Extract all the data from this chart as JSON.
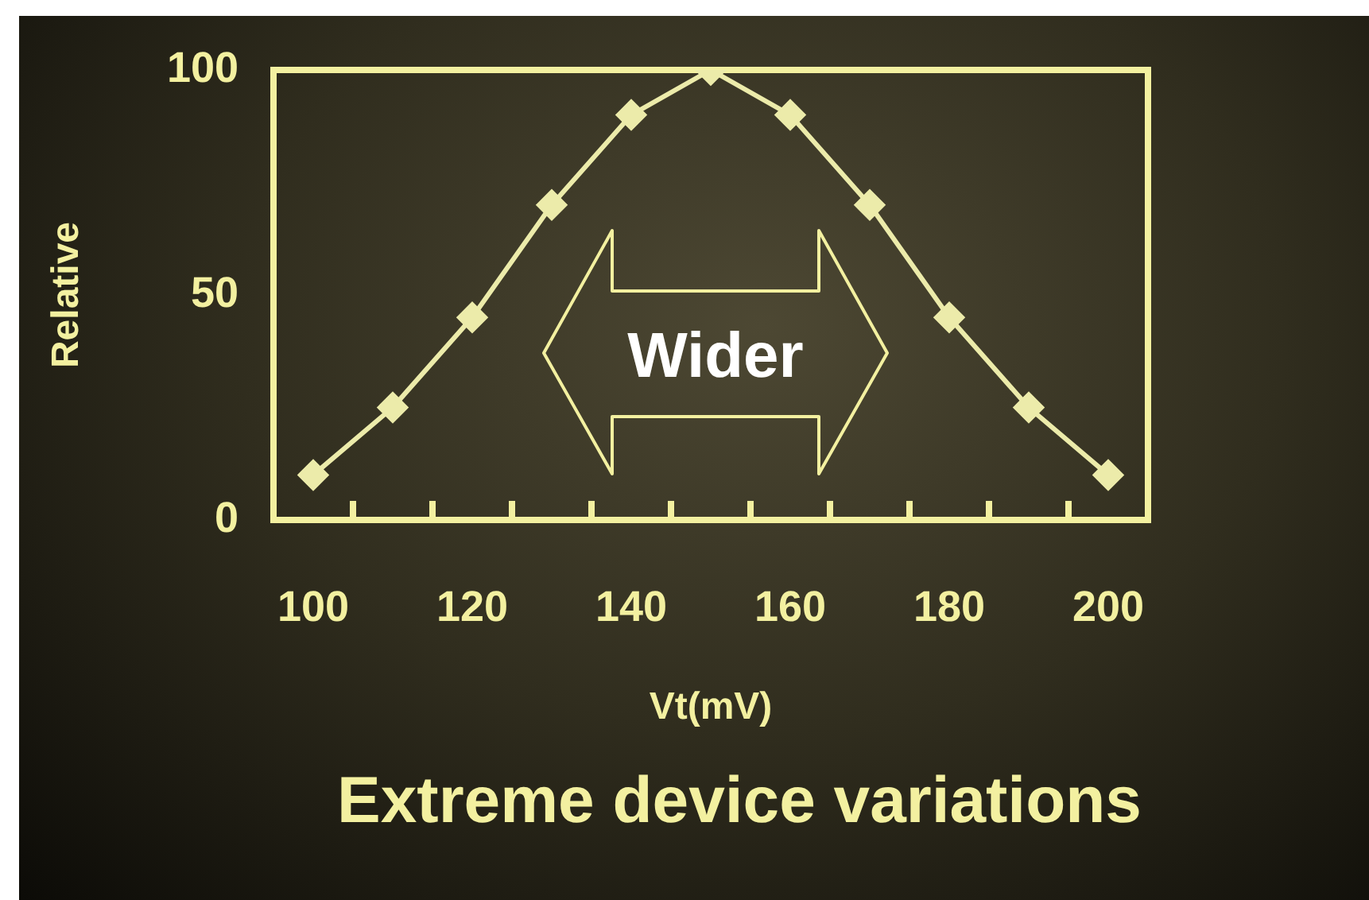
{
  "chart_data": {
    "type": "line",
    "title": "Extreme device variations",
    "xlabel": "Vt(mV)",
    "ylabel": "Relative",
    "annotations": [
      "Wider"
    ],
    "x": [
      100,
      110,
      120,
      130,
      140,
      150,
      160,
      170,
      180,
      190,
      200
    ],
    "values": [
      10,
      25,
      45,
      70,
      90,
      100,
      90,
      70,
      45,
      25,
      10
    ],
    "color": "#ecebaa",
    "marker": "diamond",
    "line_style": "solid",
    "xlim": [
      95,
      205
    ],
    "xticks": [
      100,
      {
        "value": 105,
        "label": null
      },
      {
        "value": 115,
        "label": null
      },
      120,
      {
        "value": 125,
        "label": null
      },
      {
        "value": 135,
        "label": null
      },
      140,
      {
        "value": 145,
        "label": null
      },
      {
        "value": 155,
        "label": null
      },
      160,
      {
        "value": 165,
        "label": null
      },
      {
        "value": 175,
        "label": null
      },
      180,
      {
        "value": 185,
        "label": null
      },
      {
        "value": 195,
        "label": null
      },
      200
    ],
    "ylim": [
      0,
      100
    ],
    "yticks": [
      0,
      50,
      100
    ]
  }
}
